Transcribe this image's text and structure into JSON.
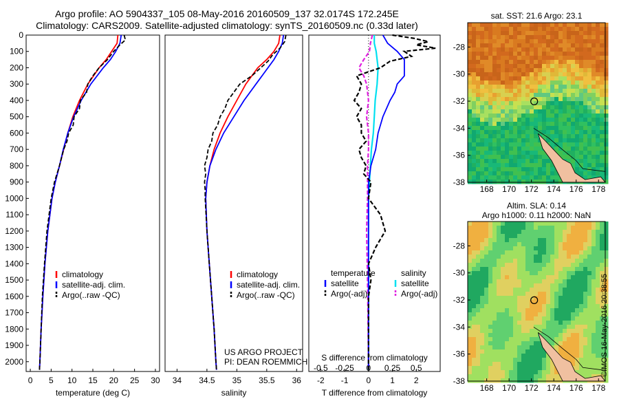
{
  "header": {
    "line1": "Argo profile: AO 5904337_105 08-May-2016 20160509_137 32.0174S 172.245E",
    "line2": "Climatology: CARS2009. Satellite-adjusted climatology: synTS_20160509.nc (0.33d later)"
  },
  "colors": {
    "climatology": "#ff0000",
    "satellite": "#0000ff",
    "argo": "#000000",
    "sat_salinity": "#00e0f0",
    "argo_salinity": "#e020e0"
  },
  "chart_data": [
    {
      "type": "line",
      "name": "temperature-panel",
      "xlabel": "temperature (deg C)",
      "ylabel": "",
      "xlim": [
        -1,
        31
      ],
      "ylim": [
        2060,
        0
      ],
      "xticks": [
        "0",
        "5",
        "10",
        "15",
        "20",
        "25",
        "30"
      ],
      "yticks": [
        "0",
        "100",
        "200",
        "300",
        "400",
        "500",
        "600",
        "700",
        "800",
        "900",
        "1000",
        "1100",
        "1200",
        "1300",
        "1400",
        "1500",
        "1600",
        "1700",
        "1800",
        "1900",
        "2000"
      ],
      "legend": [
        "climatology",
        "satellite-adj. clim.",
        "Argo(..raw -QC)"
      ],
      "legend_position": "bottom-right",
      "series": [
        {
          "name": "climatology",
          "depth": [
            0,
            50,
            100,
            150,
            200,
            300,
            400,
            500,
            600,
            700,
            800,
            900,
            1000,
            1200,
            1400,
            1600,
            1800,
            2000,
            2050
          ],
          "values": [
            21.0,
            20.8,
            19.5,
            18.2,
            16.5,
            13.8,
            11.8,
            10.2,
            9.0,
            8.0,
            7.0,
            6.0,
            5.2,
            4.2,
            3.5,
            3.0,
            2.6,
            2.3,
            2.2
          ]
        },
        {
          "name": "satellite-adj. clim.",
          "depth": [
            0,
            50,
            100,
            150,
            200,
            300,
            400,
            500,
            600,
            700,
            800,
            900,
            1000,
            1200,
            1400,
            1600,
            1800,
            2000,
            2050
          ],
          "values": [
            21.8,
            21.5,
            20.5,
            19.2,
            17.5,
            14.5,
            12.2,
            10.4,
            9.0,
            7.9,
            7.0,
            6.0,
            5.2,
            4.2,
            3.5,
            3.0,
            2.6,
            2.3,
            2.2
          ]
        },
        {
          "name": "Argo(..raw -QC)",
          "depth": [
            0,
            30,
            60,
            100,
            150,
            200,
            250,
            300,
            350,
            400,
            450,
            500,
            550,
            600,
            650,
            700,
            800,
            900,
            1000,
            1200,
            1400,
            1600,
            1800,
            2000,
            2050
          ],
          "values": [
            22.5,
            22.8,
            21.5,
            20.0,
            18.5,
            16.5,
            15.0,
            13.8,
            13.5,
            12.0,
            11.8,
            10.5,
            10.3,
            9.2,
            8.8,
            8.0,
            7.0,
            5.8,
            5.0,
            4.0,
            3.4,
            2.9,
            2.6,
            2.3,
            2.2
          ]
        }
      ]
    },
    {
      "type": "line",
      "name": "salinity-panel",
      "xlabel": "salinity",
      "ylabel": "",
      "xlim": [
        33.8,
        36.1
      ],
      "ylim": [
        2060,
        0
      ],
      "xticks": [
        "34",
        "34.5",
        "35",
        "35.5",
        "36"
      ],
      "legend": [
        "climatology",
        "satellite-adj. clim.",
        "Argo(..raw -QC)"
      ],
      "legend_position": "bottom-right",
      "annotations": [
        "US ARGO PROJECT",
        "PI: DEAN ROEMMICH"
      ],
      "series": [
        {
          "name": "climatology",
          "depth": [
            0,
            50,
            100,
            150,
            200,
            300,
            400,
            500,
            600,
            700,
            800,
            900,
            1000,
            1200,
            1400,
            1600,
            1800,
            2000,
            2050
          ],
          "values": [
            35.72,
            35.7,
            35.62,
            35.5,
            35.35,
            35.15,
            35.0,
            34.85,
            34.72,
            34.62,
            34.55,
            34.5,
            34.48,
            34.5,
            34.54,
            34.58,
            34.62,
            34.65,
            34.66
          ]
        },
        {
          "name": "satellite-adj. clim.",
          "depth": [
            0,
            50,
            100,
            150,
            200,
            300,
            400,
            500,
            600,
            700,
            800,
            900,
            1000,
            1200,
            1400,
            1600,
            1800,
            2000,
            2050
          ],
          "values": [
            35.78,
            35.76,
            35.7,
            35.62,
            35.52,
            35.32,
            35.12,
            34.95,
            34.78,
            34.65,
            34.55,
            34.5,
            34.48,
            34.5,
            34.54,
            34.58,
            34.62,
            34.65,
            34.66
          ]
        },
        {
          "name": "Argo(..raw -QC)",
          "depth": [
            0,
            40,
            80,
            120,
            160,
            200,
            250,
            300,
            350,
            400,
            450,
            500,
            550,
            600,
            650,
            700,
            750,
            800,
            850,
            900,
            950,
            1000,
            1200,
            1400,
            1600,
            1800,
            2000,
            2050
          ],
          "values": [
            35.82,
            35.8,
            35.72,
            35.6,
            35.52,
            35.4,
            35.25,
            35.05,
            34.95,
            34.85,
            34.8,
            34.72,
            34.68,
            34.6,
            34.58,
            34.52,
            34.5,
            34.46,
            34.48,
            34.46,
            34.47,
            34.47,
            34.5,
            34.54,
            34.58,
            34.62,
            34.65,
            34.66
          ]
        }
      ]
    },
    {
      "type": "line",
      "name": "difference-panel",
      "xlabel": "T difference from climatology",
      "xlabel_top": "S difference from climatology",
      "xlim": [
        -2.5,
        3.0
      ],
      "ylim": [
        2060,
        0
      ],
      "xticks": [
        "-2",
        "-1",
        "0",
        "1",
        "2"
      ],
      "xticks_salinity": [
        "-0.5",
        "-0.25",
        "0",
        "0.25",
        "0.5"
      ],
      "legend_headers": [
        "temperature",
        "salinity"
      ],
      "legend": [
        "satellite",
        "Argo(-adj)",
        "satellite",
        "Argo(-adj)"
      ],
      "legend_position": "bottom-right",
      "series": [
        {
          "name": "satellite",
          "depth": [
            0,
            50,
            100,
            150,
            200,
            250,
            300,
            350,
            400,
            500,
            600,
            700,
            800,
            900,
            1000,
            1200,
            1400,
            1600,
            1800,
            2000,
            2050
          ],
          "values": [
            0.6,
            0.8,
            1.2,
            1.5,
            1.5,
            1.5,
            1.2,
            1.1,
            0.9,
            0.6,
            0.4,
            0.3,
            0.1,
            0.0,
            0.0,
            0.0,
            0.0,
            0.0,
            0.0,
            0.0,
            0.0
          ]
        },
        {
          "name": "Argo(-adj)",
          "depth": [
            0,
            20,
            40,
            60,
            80,
            100,
            130,
            160,
            200,
            250,
            300,
            350,
            400,
            450,
            500,
            550,
            600,
            650,
            700,
            750,
            800,
            850,
            900,
            1000,
            1100,
            1200,
            1300,
            1400,
            1500,
            1600,
            1800,
            2000,
            2050
          ],
          "values": [
            1.0,
            1.9,
            2.5,
            2.0,
            2.8,
            1.5,
            1.8,
            0.9,
            0.5,
            -0.5,
            -0.3,
            -0.4,
            -0.6,
            -0.3,
            -0.5,
            -0.3,
            -0.3,
            -0.1,
            -0.4,
            -0.3,
            -0.1,
            -0.2,
            0.1,
            0.0,
            0.5,
            0.7,
            0.3,
            0.0,
            0.1,
            0.0,
            0.0,
            0.0,
            0.0
          ]
        }
      ],
      "salinity_series": [
        {
          "name": "satellite",
          "depth": [
            0,
            50,
            100,
            200,
            300,
            400,
            500,
            600,
            700,
            800,
            900,
            1000,
            1200,
            1500,
            2000,
            2050
          ],
          "values": [
            0.06,
            0.06,
            0.08,
            0.1,
            0.09,
            0.07,
            0.06,
            0.05,
            0.03,
            0.02,
            0.01,
            0.0,
            0.0,
            0.0,
            0.0,
            0.0
          ]
        },
        {
          "name": "Argo(-adj)",
          "depth": [
            0,
            50,
            100,
            150,
            200,
            250,
            300,
            400,
            500,
            600,
            700,
            800,
            900,
            1000,
            1200,
            1500,
            2000,
            2050
          ],
          "values": [
            0.04,
            0.02,
            0.01,
            -0.05,
            -0.1,
            -0.05,
            -0.02,
            0.0,
            -0.02,
            0.0,
            0.0,
            -0.01,
            -0.01,
            -0.01,
            -0.02,
            -0.01,
            0.0,
            0.0
          ]
        }
      ]
    },
    {
      "type": "heatmap",
      "name": "sst-map",
      "title": "sat. SST: 21.6  Argo: 23.1",
      "xticks": [
        "168",
        "170",
        "172",
        "174",
        "176",
        "178"
      ],
      "yticks": [
        "-28",
        "-30",
        "-32",
        "-34",
        "-36",
        "-38"
      ],
      "xlim": [
        166.3,
        178.6
      ],
      "ylim": [
        -38,
        -26.2
      ],
      "marker": {
        "lon": 172.245,
        "lat": -32.0174
      }
    },
    {
      "type": "heatmap",
      "name": "sla-map",
      "title": "Altim. SLA: 0.14",
      "subtitle": "Argo h1000: 0.11 h2000: NaN",
      "xticks": [
        "168",
        "170",
        "172",
        "174",
        "176",
        "178"
      ],
      "yticks": [
        "-28",
        "-30",
        "-32",
        "-34",
        "-36",
        "-38"
      ],
      "xlim": [
        166.3,
        178.6
      ],
      "ylim": [
        -38,
        -26.2
      ],
      "marker": {
        "lon": 172.245,
        "lat": -32.0174
      }
    }
  ],
  "stamp": "©IMOS 16-May-2016 20:38:55"
}
